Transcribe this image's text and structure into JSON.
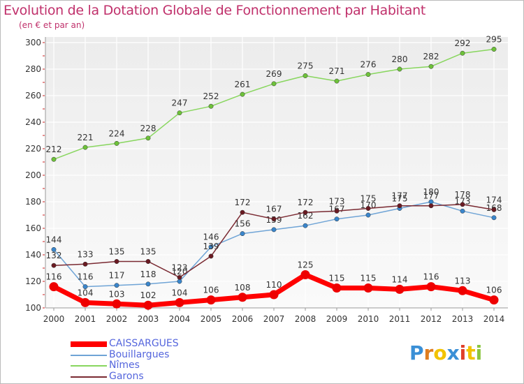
{
  "title": "Evolution de la Dotation Globale de Fonctionnement par Habitant",
  "subtitle": "(en € et par an)",
  "colors": {
    "title": "#c0306b",
    "legend_text": "#5566dd"
  },
  "logo": {
    "letters": [
      "P",
      "r",
      "o",
      "x",
      "i",
      "t",
      "i"
    ],
    "colors": [
      "#3a8fd6",
      "#e07d1e",
      "#f2c300",
      "#3a8fd6",
      "#e0402a",
      "#f2c300",
      "#8cc63f"
    ]
  },
  "chart_data": {
    "type": "line",
    "title": "Evolution de la Dotation Globale de Fonctionnement par Habitant",
    "subtitle": "(en € et par an)",
    "x": [
      "2000",
      "2001",
      "2002",
      "2003",
      "2004",
      "2005",
      "2006",
      "2007",
      "2008",
      "2009",
      "2010",
      "2011",
      "2012",
      "2013",
      "2014"
    ],
    "ylim": [
      100,
      300
    ],
    "yticks": [
      "100",
      "120",
      "140",
      "160",
      "180",
      "200",
      "220",
      "240",
      "260",
      "280",
      "300"
    ],
    "grid": true,
    "legend_position": "bottom-left",
    "series": [
      {
        "name": "Nîmes",
        "color": "#88d65e",
        "marker": "#6ec23a",
        "width": 1.5,
        "labels": true,
        "values": [
          212,
          221,
          224,
          228,
          247,
          252,
          261,
          269,
          275,
          271,
          276,
          280,
          282,
          292,
          295
        ]
      },
      {
        "name": "Bouillargues",
        "color": "#6fa4d6",
        "marker": "#3a86cc",
        "width": 1.5,
        "labels": true,
        "values": [
          144,
          116,
          117,
          118,
          120,
          146,
          156,
          159,
          162,
          167,
          170,
          175,
          180,
          173,
          168
        ]
      },
      {
        "name": "Garons",
        "color": "#7a2a32",
        "marker": "#6a1a22",
        "width": 1.5,
        "labels": true,
        "values": [
          132,
          133,
          135,
          135,
          123,
          139,
          172,
          167,
          172,
          173,
          175,
          177,
          177,
          178,
          174
        ]
      },
      {
        "name": "CAISSARGUES",
        "color": "#ff0000",
        "marker": "#ee0000",
        "width": 7,
        "labels": true,
        "values": [
          116,
          104,
          103,
          102,
          104,
          106,
          108,
          110,
          125,
          115,
          115,
          114,
          116,
          113,
          106
        ]
      }
    ],
    "legend_order": [
      "CAISSARGUES",
      "Bouillargues",
      "Nîmes",
      "Garons"
    ]
  }
}
